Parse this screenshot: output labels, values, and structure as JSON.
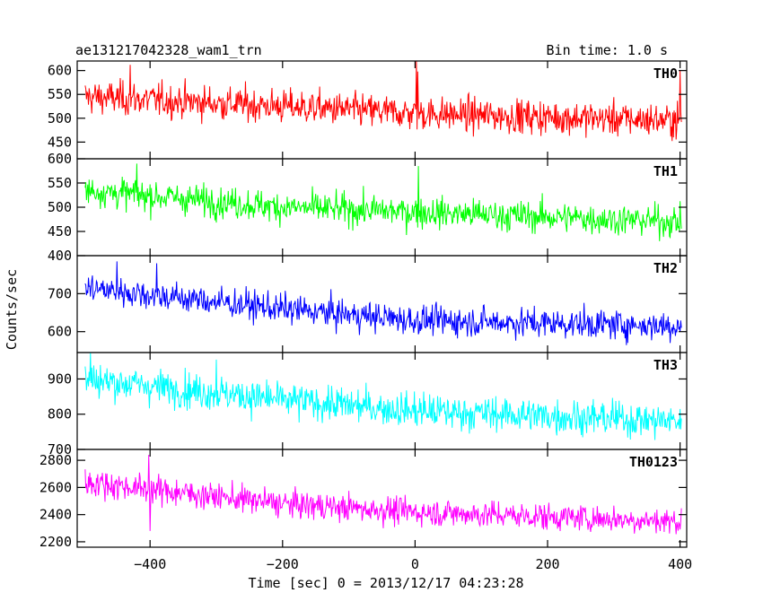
{
  "header": {
    "title": "ae131217042328_wam1_trn",
    "bin_time": "Bin time: 1.0 s"
  },
  "axes": {
    "ylabel": "Counts/sec",
    "xlabel": "Time [sec] 0 = 2013/12/17 04:23:28"
  },
  "chart_data": {
    "type": "line",
    "x_range": [
      -510,
      410
    ],
    "x_ticks": [
      -400,
      -200,
      0,
      200,
      400
    ],
    "x_tick_labels": [
      "−400",
      "−200",
      "0",
      "200",
      "400"
    ],
    "x_start": -498,
    "x_end": 402,
    "x_step": 1,
    "shared_x": true,
    "grid": false,
    "panels": [
      {
        "name": "TH0",
        "color": "#ff0000",
        "ylim": [
          415,
          620
        ],
        "ticks": [
          450,
          500,
          550,
          600
        ],
        "tick_labels": [
          "450",
          "500",
          "550",
          "600"
        ],
        "trend": [
          [
            -498,
            545
          ],
          [
            -200,
            525
          ],
          [
            0,
            510
          ],
          [
            400,
            495
          ]
        ],
        "noise_amplitude": 30,
        "spikes": [
          [
            -430,
            612
          ],
          [
            2,
            620
          ],
          [
            4,
            598
          ],
          [
            400,
            600
          ]
        ]
      },
      {
        "name": "TH1",
        "color": "#00ff00",
        "ylim": [
          400,
          600
        ],
        "ticks": [
          400,
          450,
          500,
          550,
          600
        ],
        "tick_labels": [
          "400",
          "450",
          "500",
          "550",
          "600"
        ],
        "trend": [
          [
            -498,
            535
          ],
          [
            -200,
            500
          ],
          [
            0,
            490
          ],
          [
            400,
            470
          ]
        ],
        "noise_amplitude": 27,
        "spikes": [
          [
            -420,
            590
          ],
          [
            5,
            585
          ]
        ]
      },
      {
        "name": "TH2",
        "color": "#0000ff",
        "ylim": [
          545,
          800
        ],
        "ticks": [
          600,
          700
        ],
        "tick_labels": [
          "600",
          "700"
        ],
        "trend": [
          [
            -498,
            715
          ],
          [
            -200,
            660
          ],
          [
            0,
            630
          ],
          [
            400,
            615
          ]
        ],
        "noise_amplitude": 33,
        "spikes": [
          [
            -450,
            785
          ],
          [
            -390,
            780
          ]
        ]
      },
      {
        "name": "TH3",
        "color": "#00ffff",
        "ylim": [
          700,
          975
        ],
        "ticks": [
          700,
          800,
          900
        ],
        "tick_labels": [
          "700",
          "800",
          "900"
        ],
        "trend": [
          [
            -498,
            900
          ],
          [
            -200,
            840
          ],
          [
            0,
            810
          ],
          [
            400,
            780
          ]
        ],
        "noise_amplitude": 42,
        "spikes": [
          [
            -490,
            975
          ],
          [
            -300,
            955
          ]
        ]
      },
      {
        "name": "TH0123",
        "color": "#ff00ff",
        "ylim": [
          2160,
          2880
        ],
        "ticks": [
          2200,
          2400,
          2600,
          2800
        ],
        "tick_labels": [
          "2200",
          "2400",
          "2600",
          "2800"
        ],
        "trend": [
          [
            -498,
            2640
          ],
          [
            -200,
            2480
          ],
          [
            0,
            2420
          ],
          [
            400,
            2350
          ]
        ],
        "noise_amplitude": 85,
        "spikes": [
          [
            -402,
            2840
          ],
          [
            -400,
            2280
          ]
        ]
      }
    ]
  }
}
